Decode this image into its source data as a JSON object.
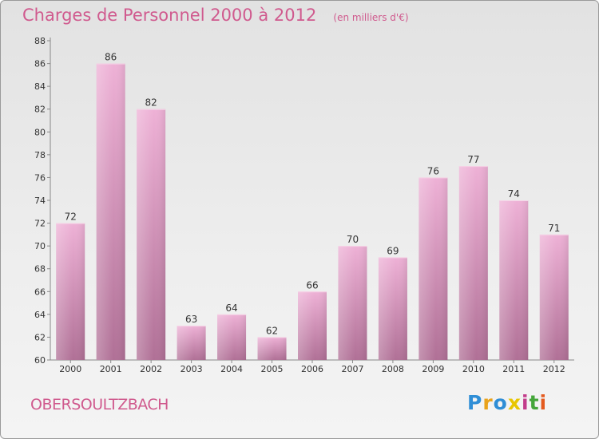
{
  "header": {
    "title": "Charges de Personnel 2000 à 2012",
    "subtitle": "(en milliers d'€)"
  },
  "footer": {
    "commune": "OBERSOULTZBACH"
  },
  "logo": {
    "letters": [
      "P",
      "r",
      "o",
      "x",
      "i",
      "t",
      "i"
    ],
    "colors": [
      "#2f8ed6",
      "#e9a21b",
      "#2f8ed6",
      "#e8c600",
      "#c23c8a",
      "#45a63a",
      "#e45a1e"
    ]
  },
  "colors": {
    "bar_top": "#eeb1d6",
    "bar_bottom": "#b07096",
    "title": "#d05a8e"
  },
  "chart_data": {
    "type": "bar",
    "categories": [
      "2000",
      "2001",
      "2002",
      "2003",
      "2004",
      "2005",
      "2006",
      "2007",
      "2008",
      "2009",
      "2010",
      "2011",
      "2012"
    ],
    "values": [
      72,
      86,
      82,
      63,
      64,
      62,
      66,
      70,
      69,
      76,
      77,
      74,
      71
    ],
    "ylim": [
      60,
      88
    ],
    "yticks": [
      60,
      62,
      64,
      66,
      68,
      70,
      72,
      74,
      76,
      78,
      80,
      82,
      84,
      86,
      88
    ],
    "title": "Charges de Personnel 2000 à 2012",
    "subtitle": "(en milliers d'€)",
    "grid": false
  }
}
